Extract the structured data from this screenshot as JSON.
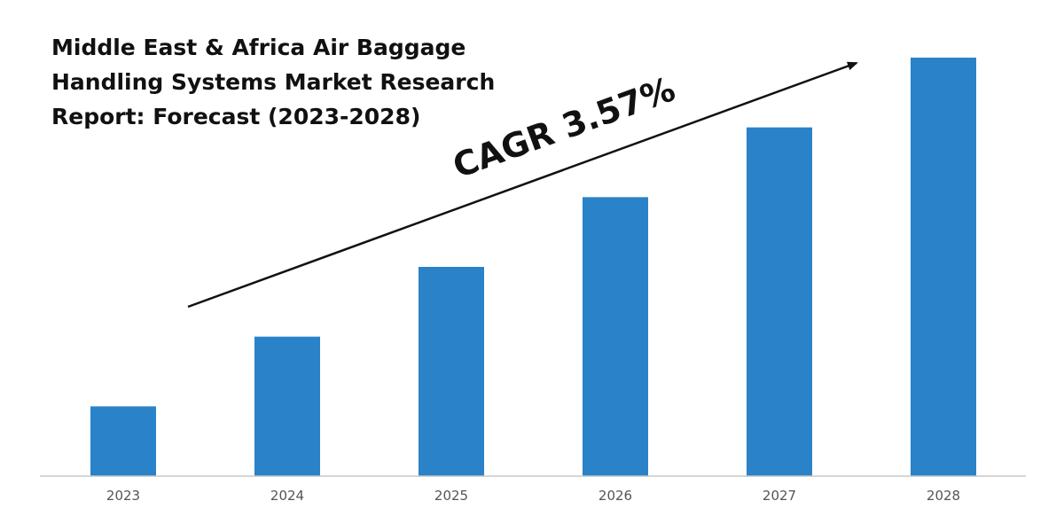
{
  "chart_data": {
    "type": "bar",
    "title_lines": [
      "Middle East & Africa Air Baggage",
      "Handling Systems Market Research",
      "Report: Forecast (2023-2028)"
    ],
    "categories": [
      "2023",
      "2024",
      "2025",
      "2026",
      "2027",
      "2028"
    ],
    "values": [
      1,
      2,
      3,
      4,
      5,
      6
    ],
    "ylim": [
      0,
      6
    ],
    "annotation": "CAGR 3.57%",
    "grid": false,
    "legend": "none",
    "bar_color": "#2A82C8",
    "axis_color": "#C8C8C8",
    "text_color": "#111111"
  }
}
